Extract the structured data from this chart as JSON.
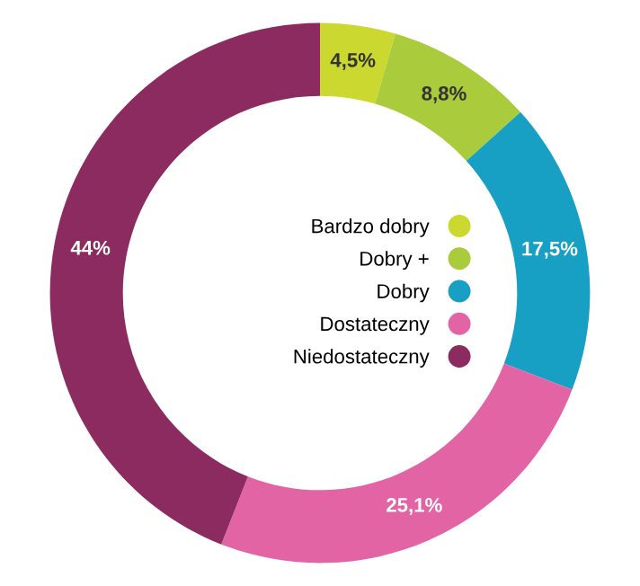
{
  "chart_data": {
    "type": "donut",
    "categories": [
      "Bardzo dobry",
      "Dobry +",
      "Dobry",
      "Dostateczny",
      "Niedostateczny"
    ],
    "values": [
      4.5,
      8.8,
      17.5,
      25.1,
      44
    ],
    "value_labels": [
      "4,5%",
      "8,8%",
      "17,5%",
      "25,1%",
      "44%"
    ],
    "colors": [
      "#cbd82f",
      "#a9cb3c",
      "#17a0c3",
      "#e264a4",
      "#8c2b60"
    ],
    "legend": "center"
  }
}
